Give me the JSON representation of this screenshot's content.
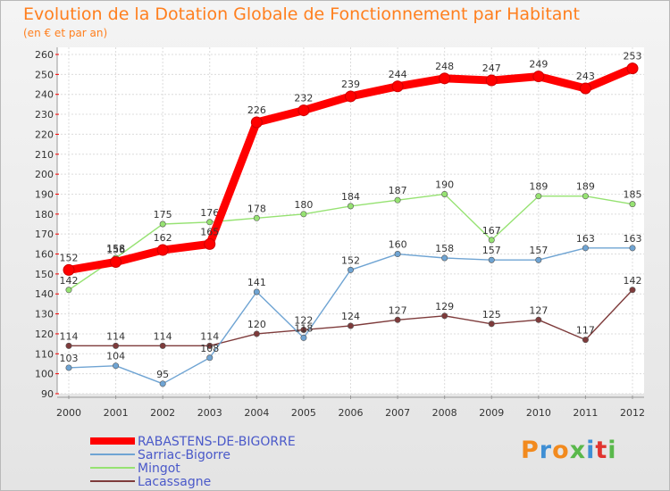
{
  "chart_data": {
    "type": "line",
    "title": "Evolution de la Dotation Globale de Fonctionnement par Habitant",
    "subtitle": "(en € et par an)",
    "xlabel": "",
    "ylabel": "",
    "x": [
      "2000",
      "2001",
      "2002",
      "2003",
      "2004",
      "2005",
      "2006",
      "2007",
      "2008",
      "2009",
      "2010",
      "2011",
      "2012"
    ],
    "ylim": [
      90,
      260
    ],
    "yticks": [
      90,
      100,
      110,
      120,
      130,
      140,
      150,
      160,
      170,
      180,
      190,
      200,
      210,
      220,
      230,
      240,
      250,
      260
    ],
    "grid": true,
    "legend": "bottom-left",
    "series": [
      {
        "name": "RABASTENS-DE-BIGORRE",
        "color": "#ff0000",
        "values": [
          152,
          156,
          162,
          165,
          226,
          232,
          239,
          244,
          248,
          247,
          249,
          243,
          253
        ],
        "labels": [
          "152",
          "156",
          "162",
          "165",
          "226",
          "232",
          "239",
          "244",
          "248",
          "247",
          "249",
          "243",
          "253"
        ]
      },
      {
        "name": "Sarriac-Bigorre",
        "color": "#6fa4d3",
        "values": [
          103,
          104,
          95,
          108,
          141,
          118,
          152,
          160,
          158,
          157,
          157,
          163,
          163
        ],
        "labels": [
          "103",
          "104",
          "95",
          "108",
          "141",
          "118",
          "152",
          "160",
          "158",
          "157",
          "157",
          "163",
          "163"
        ]
      },
      {
        "name": "Mingot",
        "color": "#96e272",
        "values": [
          142,
          158,
          175,
          176,
          178,
          180,
          184,
          187,
          190,
          167,
          189,
          189,
          185
        ],
        "labels": [
          "142",
          "158",
          "175",
          "176",
          "178",
          "180",
          "184",
          "187",
          "190",
          "167",
          "189",
          "189",
          "185"
        ]
      },
      {
        "name": "Lacassagne",
        "color": "#7e3b3b",
        "values": [
          114,
          114,
          114,
          114,
          120,
          122,
          124,
          127,
          129,
          125,
          127,
          117,
          142
        ],
        "labels": [
          "114",
          "114",
          "114",
          "114",
          "120",
          "122",
          "124",
          "127",
          "129",
          "125",
          "127",
          "117",
          "142"
        ]
      }
    ]
  },
  "branding": {
    "logo_text": "Proxiti",
    "logo_colors": [
      "#f28a1e",
      "#3f8fd4",
      "#f28a1e",
      "#59b84b",
      "#3f8fd4",
      "#e0342f",
      "#59b84b"
    ]
  }
}
